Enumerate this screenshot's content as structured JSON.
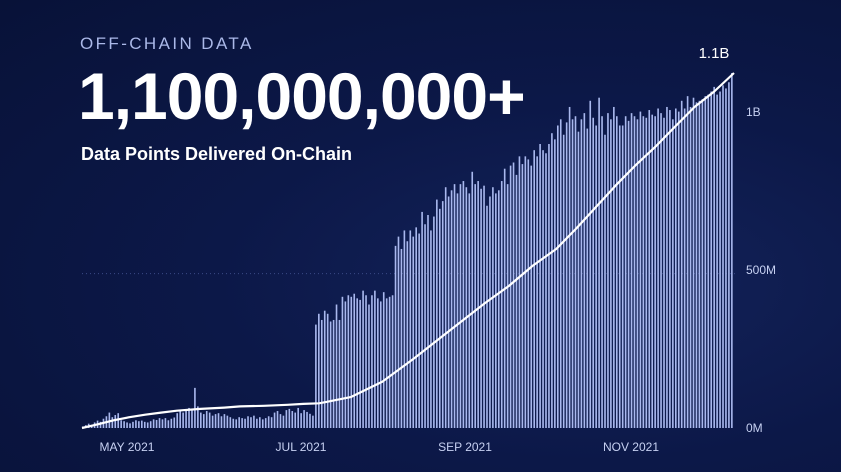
{
  "header": {
    "eyebrow": "OFF-CHAIN DATA",
    "headline": "1,100,000,000+",
    "subtitle": "Data Points Delivered On-Chain"
  },
  "colors": {
    "bar": "#a9b8ee",
    "line": "#ffffff",
    "gridline": "#3a4a86"
  },
  "chart_data": {
    "type": "bar",
    "title": "",
    "xlabel": "",
    "ylabel": "",
    "x_tick_labels": [
      "MAY 2021",
      "JUL 2021",
      "SEP 2021",
      "NOV 2021"
    ],
    "y_tick_labels": [
      "0M",
      "500M",
      "1B"
    ],
    "ylim": [
      0,
      1150000000
    ],
    "annotation": "1.1B",
    "grid": "dotted gridline at 500M",
    "series": [
      {
        "kind": "bar",
        "values": [
          5,
          9,
          14,
          10,
          18,
          24,
          20,
          30,
          38,
          50,
          35,
          42,
          48,
          25,
          22,
          18,
          15,
          20,
          25,
          22,
          24,
          20,
          18,
          22,
          28,
          26,
          32,
          28,
          32,
          25,
          30,
          34,
          48,
          55,
          50,
          60,
          65,
          58,
          130,
          70,
          50,
          45,
          55,
          50,
          40,
          45,
          48,
          38,
          45,
          40,
          35,
          30,
          28,
          35,
          32,
          30,
          38,
          35,
          40,
          30,
          35,
          28,
          32,
          38,
          35,
          50,
          55,
          45,
          40,
          58,
          62,
          55,
          50,
          65,
          48,
          58,
          52,
          46,
          40,
          335,
          370,
          350,
          380,
          370,
          345,
          350,
          400,
          350,
          425,
          410,
          430,
          425,
          435,
          420,
          415,
          445,
          430,
          400,
          430,
          445,
          420,
          410,
          440,
          420,
          425,
          430,
          590,
          620,
          580,
          640,
          605,
          640,
          620,
          650,
          630,
          700,
          660,
          690,
          640,
          685,
          740,
          710,
          735,
          780,
          750,
          770,
          790,
          760,
          790,
          800,
          780,
          760,
          830,
          790,
          800,
          775,
          785,
          720,
          750,
          780,
          760,
          770,
          800,
          840,
          790,
          850,
          860,
          820,
          880,
          855,
          880,
          870,
          850,
          900,
          880,
          920,
          900,
          890,
          920,
          955,
          935,
          980,
          1000,
          950,
          990,
          1040,
          1000,
          1010,
          960,
          1000,
          1020,
          970,
          1060,
          1005,
          980,
          1070,
          1010,
          950,
          1020,
          1000,
          1040,
          1010,
          980,
          980,
          1010,
          995,
          1020,
          1010,
          1000,
          1025,
          1010,
          1005,
          1030,
          1015,
          1010,
          1035,
          1020,
          1005,
          1040,
          1030,
          1000,
          1035,
          1025,
          1060,
          1035,
          1075,
          1040,
          1070,
          1055,
          1060,
          1065,
          1075,
          1080,
          1090,
          1105,
          1080,
          1090,
          1110,
          1100,
          1120,
          1150
        ]
      },
      {
        "kind": "line",
        "points": [
          [
            0,
            0
          ],
          [
            20,
            12
          ],
          [
            40,
            25
          ],
          [
            60,
            35
          ],
          [
            80,
            43
          ],
          [
            100,
            50
          ],
          [
            120,
            56
          ],
          [
            150,
            62
          ],
          [
            180,
            66
          ],
          [
            200,
            70
          ],
          [
            230,
            72
          ],
          [
            260,
            75
          ],
          [
            280,
            78
          ],
          [
            300,
            80
          ],
          [
            310,
            85
          ],
          [
            340,
            100
          ],
          [
            380,
            150
          ],
          [
            420,
            225
          ],
          [
            450,
            285
          ],
          [
            480,
            345
          ],
          [
            510,
            405
          ],
          [
            540,
            460
          ],
          [
            570,
            525
          ],
          [
            600,
            580
          ],
          [
            625,
            645
          ],
          [
            650,
            715
          ],
          [
            675,
            785
          ],
          [
            700,
            850
          ],
          [
            725,
            910
          ],
          [
            750,
            975
          ],
          [
            775,
            1040
          ],
          [
            800,
            1090
          ],
          [
            825,
            1150
          ]
        ]
      }
    ]
  }
}
